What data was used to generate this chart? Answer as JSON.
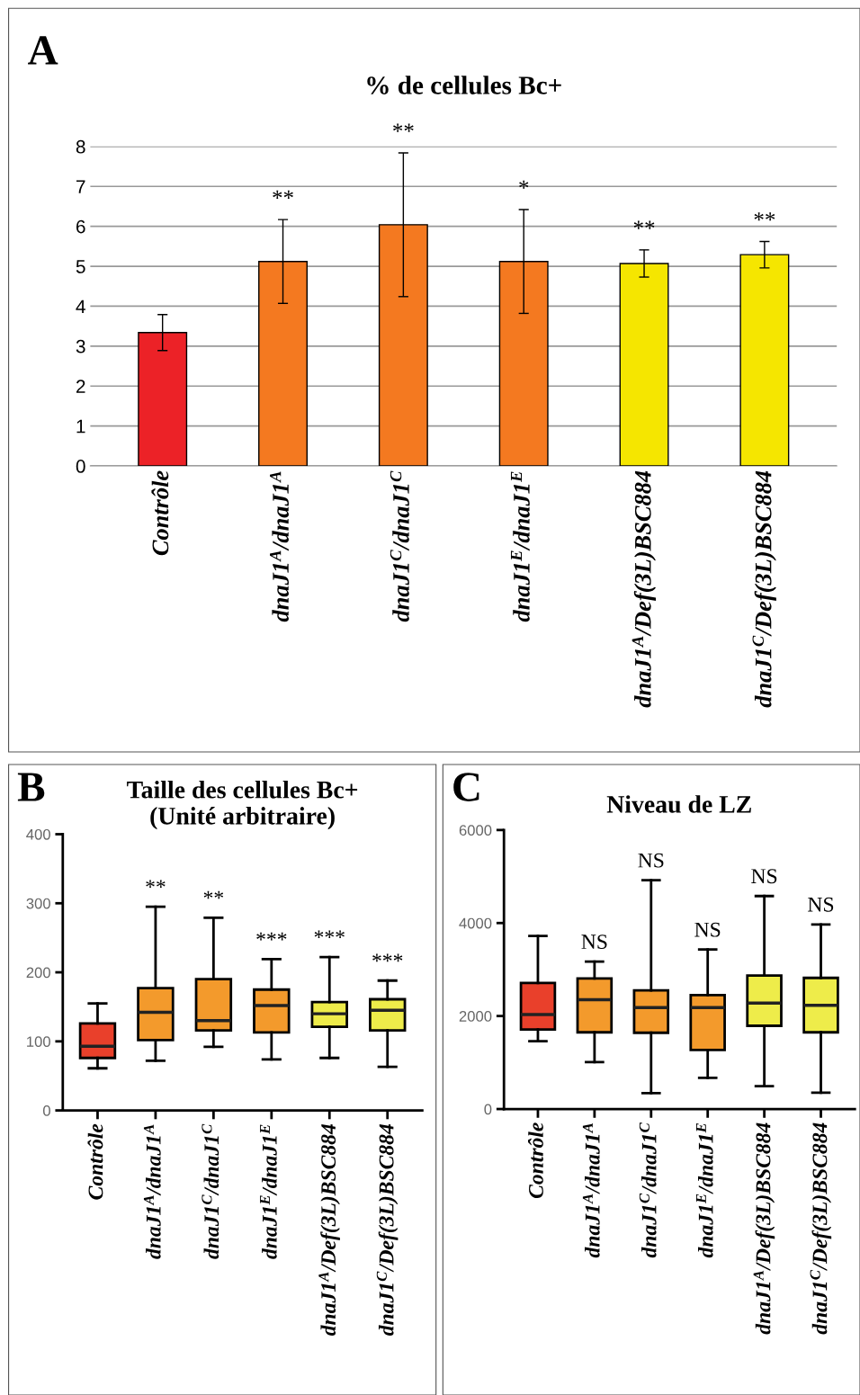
{
  "chart_data": [
    {
      "type": "bar",
      "title": "% de cellules Bc+",
      "annotations": [
        "A",
        "**",
        "**",
        "*",
        "**",
        "**"
      ],
      "categories": [
        "Contrôle",
        "dnaJ1$^{A}$/dnaJ1$^{A}$",
        "dnaJ1$^{C}$/dnaJ1$^{C}$",
        "dnaJ1$^{E}$/dnaJ1$^{E}$",
        "dnaJ1$^{A}$/Def(3L)BSC884",
        "dnaJ1$^{C}$/Def(3L)BSC884"
      ],
      "values": [
        3.34,
        5.12,
        6.04,
        5.12,
        5.07,
        5.29
      ],
      "errors": [
        0.45,
        1.05,
        1.8,
        1.3,
        0.34,
        0.33
      ],
      "colors": [
        "#ec2227",
        "#f47920",
        "#f47920",
        "#f47920",
        "#f5e600",
        "#f5e600"
      ],
      "ylim": [
        0,
        8
      ],
      "yticks": [
        0,
        1,
        2,
        3,
        4,
        5,
        6,
        7,
        8
      ],
      "grid": "y"
    },
    {
      "type": "box",
      "title": "Taille des cellules Bc+\n(Unité arbitraire)",
      "annotations": [
        "B",
        "**",
        "**",
        "***",
        "***",
        "***"
      ],
      "categories": [
        "Contrôle",
        "dnaJ1$^{A}$/dnaJ1$^{A}$",
        "dnaJ1$^{C}$/dnaJ1$^{C}$",
        "dnaJ1$^{E}$/dnaJ1$^{E}$",
        "dnaJ1$^{A}$/Def(3L)BSC884",
        "dnaJ1$^{C}$/Def(3L)BSC884"
      ],
      "boxes": [
        {
          "low": 61,
          "q1": 76,
          "median": 93,
          "q3": 126,
          "high": 155
        },
        {
          "low": 72,
          "q1": 102,
          "median": 142,
          "q3": 177,
          "high": 295
        },
        {
          "low": 92,
          "q1": 116,
          "median": 130,
          "q3": 190,
          "high": 279
        },
        {
          "low": 74,
          "q1": 113,
          "median": 152,
          "q3": 175,
          "high": 219
        },
        {
          "low": 76,
          "q1": 121,
          "median": 140,
          "q3": 157,
          "high": 222
        },
        {
          "low": 63,
          "q1": 116,
          "median": 145,
          "q3": 161,
          "high": 188
        }
      ],
      "colors": [
        "#e9402b",
        "#f39a2c",
        "#f39a2c",
        "#f39a2c",
        "#eeec4a",
        "#eeec4a"
      ],
      "ylim": [
        0,
        400
      ],
      "yticks": [
        0,
        100,
        200,
        300,
        400
      ]
    },
    {
      "type": "box",
      "title": "Niveau de LZ",
      "annotations": [
        "C",
        "NS",
        "NS",
        "NS",
        "NS",
        "NS"
      ],
      "categories": [
        "Contrôle",
        "dnaJ1$^{A}$/dnaJ1$^{A}$",
        "dnaJ1$^{C}$/dnaJ1$^{C}$",
        "dnaJ1$^{E}$/dnaJ1$^{E}$",
        "dnaJ1$^{A}$/Def(3L)BSC884",
        "dnaJ1$^{C}$/Def(3L)BSC884"
      ],
      "boxes": [
        {
          "low": 1460,
          "q1": 1710,
          "median": 2030,
          "q3": 2710,
          "high": 3720
        },
        {
          "low": 1010,
          "q1": 1650,
          "median": 2350,
          "q3": 2810,
          "high": 3170
        },
        {
          "low": 340,
          "q1": 1640,
          "median": 2180,
          "q3": 2550,
          "high": 4920
        },
        {
          "low": 670,
          "q1": 1270,
          "median": 2180,
          "q3": 2450,
          "high": 3430
        },
        {
          "low": 490,
          "q1": 1790,
          "median": 2280,
          "q3": 2870,
          "high": 4580
        },
        {
          "low": 350,
          "q1": 1650,
          "median": 2230,
          "q3": 2820,
          "high": 3970
        }
      ],
      "colors": [
        "#e9402b",
        "#f39a2c",
        "#f39a2c",
        "#f39a2c",
        "#eeec4a",
        "#eeec4a"
      ],
      "ylim": [
        0,
        6000
      ],
      "yticks": [
        0,
        2000,
        4000,
        6000
      ]
    }
  ]
}
